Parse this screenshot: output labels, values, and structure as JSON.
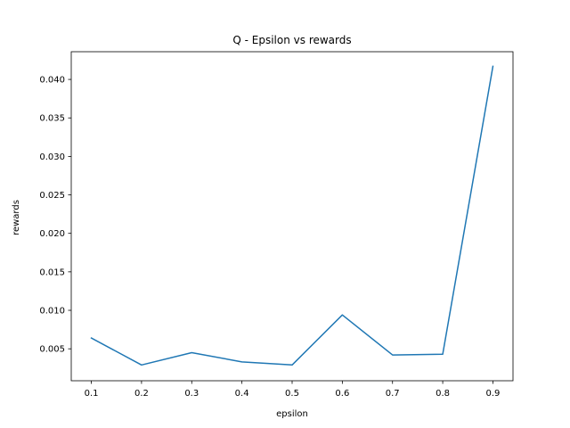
{
  "chart_data": {
    "type": "line",
    "title": "Q - Epsilon vs rewards",
    "xlabel": "epsilon",
    "ylabel": "rewards",
    "x": [
      0.1,
      0.2,
      0.3,
      0.4,
      0.5,
      0.6,
      0.7,
      0.8,
      0.9
    ],
    "x_ticks": [
      "0.1",
      "0.2",
      "0.3",
      "0.4",
      "0.5",
      "0.6",
      "0.7",
      "0.8",
      "0.9"
    ],
    "y_ticks": [
      "0.005",
      "0.010",
      "0.015",
      "0.020",
      "0.025",
      "0.030",
      "0.035",
      "0.040"
    ],
    "xlim": [
      0.06,
      0.94
    ],
    "ylim": [
      0.00085,
      0.0436
    ],
    "grid": false,
    "series": [
      {
        "values": [
          0.0064,
          0.0029,
          0.0045,
          0.0033,
          0.0029,
          0.0094,
          0.0042,
          0.0043,
          0.0417
        ],
        "color": "#1f77b4"
      }
    ]
  }
}
